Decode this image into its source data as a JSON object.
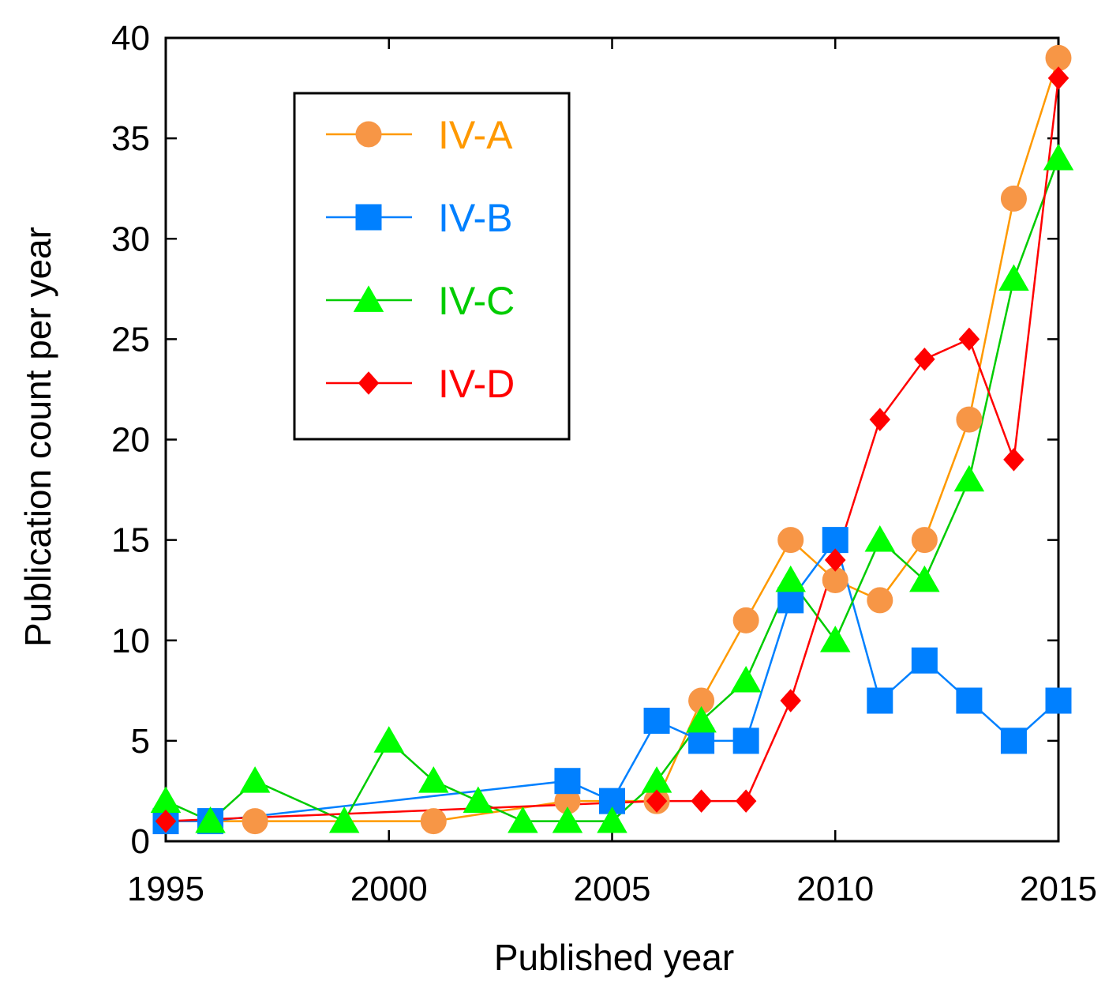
{
  "chart_data": {
    "type": "line",
    "title": "",
    "xlabel": "Published year",
    "ylabel": "Publication count per year",
    "xlim": [
      1995,
      2015
    ],
    "ylim": [
      0,
      40
    ],
    "xticks": [
      "1995",
      "2000",
      "2005",
      "2010",
      "2015"
    ],
    "yticks": [
      "0",
      "5",
      "10",
      "15",
      "20",
      "25",
      "30",
      "35",
      "40"
    ],
    "legend_position": "top-left",
    "series": [
      {
        "name": "IV-A",
        "color": "#FF9900",
        "fill": "#F79646",
        "marker": "circle",
        "points": [
          [
            1995,
            1
          ],
          [
            1997,
            1
          ],
          [
            2001,
            1
          ],
          [
            2004,
            2
          ],
          [
            2006,
            2
          ],
          [
            2007,
            7
          ],
          [
            2008,
            11
          ],
          [
            2009,
            15
          ],
          [
            2010,
            13
          ],
          [
            2011,
            12
          ],
          [
            2012,
            15
          ],
          [
            2013,
            21
          ],
          [
            2014,
            32
          ],
          [
            2015,
            39
          ]
        ]
      },
      {
        "name": "IV-B",
        "color": "#0080FF",
        "fill": "#0080FF",
        "marker": "square",
        "points": [
          [
            1995,
            1
          ],
          [
            1996,
            1
          ],
          [
            2004,
            3
          ],
          [
            2005,
            2
          ],
          [
            2006,
            6
          ],
          [
            2007,
            5
          ],
          [
            2008,
            5
          ],
          [
            2009,
            12
          ],
          [
            2010,
            15
          ],
          [
            2011,
            7
          ],
          [
            2012,
            9
          ],
          [
            2013,
            7
          ],
          [
            2014,
            5
          ],
          [
            2015,
            7
          ]
        ]
      },
      {
        "name": "IV-C",
        "color": "#00CC00",
        "fill": "#00FF00",
        "marker": "triangle",
        "points": [
          [
            1995,
            2
          ],
          [
            1996,
            1
          ],
          [
            1997,
            3
          ],
          [
            1999,
            1
          ],
          [
            2000,
            5
          ],
          [
            2001,
            3
          ],
          [
            2002,
            2
          ],
          [
            2003,
            1
          ],
          [
            2004,
            1
          ],
          [
            2005,
            1
          ],
          [
            2006,
            3
          ],
          [
            2007,
            6
          ],
          [
            2008,
            8
          ],
          [
            2009,
            13
          ],
          [
            2010,
            10
          ],
          [
            2011,
            15
          ],
          [
            2012,
            13
          ],
          [
            2013,
            18
          ],
          [
            2014,
            28
          ],
          [
            2015,
            34
          ]
        ]
      },
      {
        "name": "IV-D",
        "color": "#FF0000",
        "fill": "#FF0000",
        "marker": "diamond",
        "points": [
          [
            1995,
            1
          ],
          [
            2006,
            2
          ],
          [
            2007,
            2
          ],
          [
            2008,
            2
          ],
          [
            2009,
            7
          ],
          [
            2010,
            14
          ],
          [
            2011,
            21
          ],
          [
            2012,
            24
          ],
          [
            2013,
            25
          ],
          [
            2014,
            19
          ],
          [
            2015,
            38
          ]
        ]
      }
    ]
  }
}
